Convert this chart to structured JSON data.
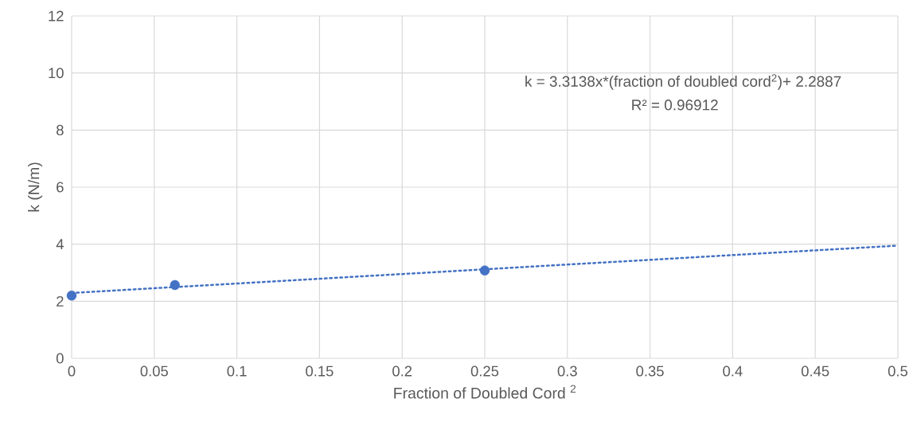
{
  "chart_data": {
    "type": "scatter",
    "xlabel": "Fraction of Doubled Cord $^{2}$",
    "ylabel": "k (N/m)",
    "series": [
      {
        "color": "#4472c4",
        "x": [
          0,
          0.0625,
          0.25
        ],
        "values": [
          2.2,
          2.57,
          3.08
        ],
        "marker": "circle"
      },
      {
        "type": "line",
        "color": "#4472c4",
        "x": [
          0,
          0.5
        ],
        "values": [
          2.29,
          3.95
        ],
        "marker": "none",
        "line_style": "dotted"
      }
    ],
    "annotations": [
      "k = 3.3138x*(fraction of doubled cord$^{2}$)+ 2.2887",
      "R² = 0.96912"
    ],
    "xlim": [
      0,
      0.5
    ],
    "ylim": [
      0,
      12
    ],
    "xticks": [
      0,
      0.05,
      0.1,
      0.15,
      0.2,
      0.25,
      0.3,
      0.35,
      0.4,
      0.45,
      0.5
    ],
    "yticks": [
      0,
      2,
      4,
      6,
      8,
      10,
      12
    ],
    "grid": true
  }
}
